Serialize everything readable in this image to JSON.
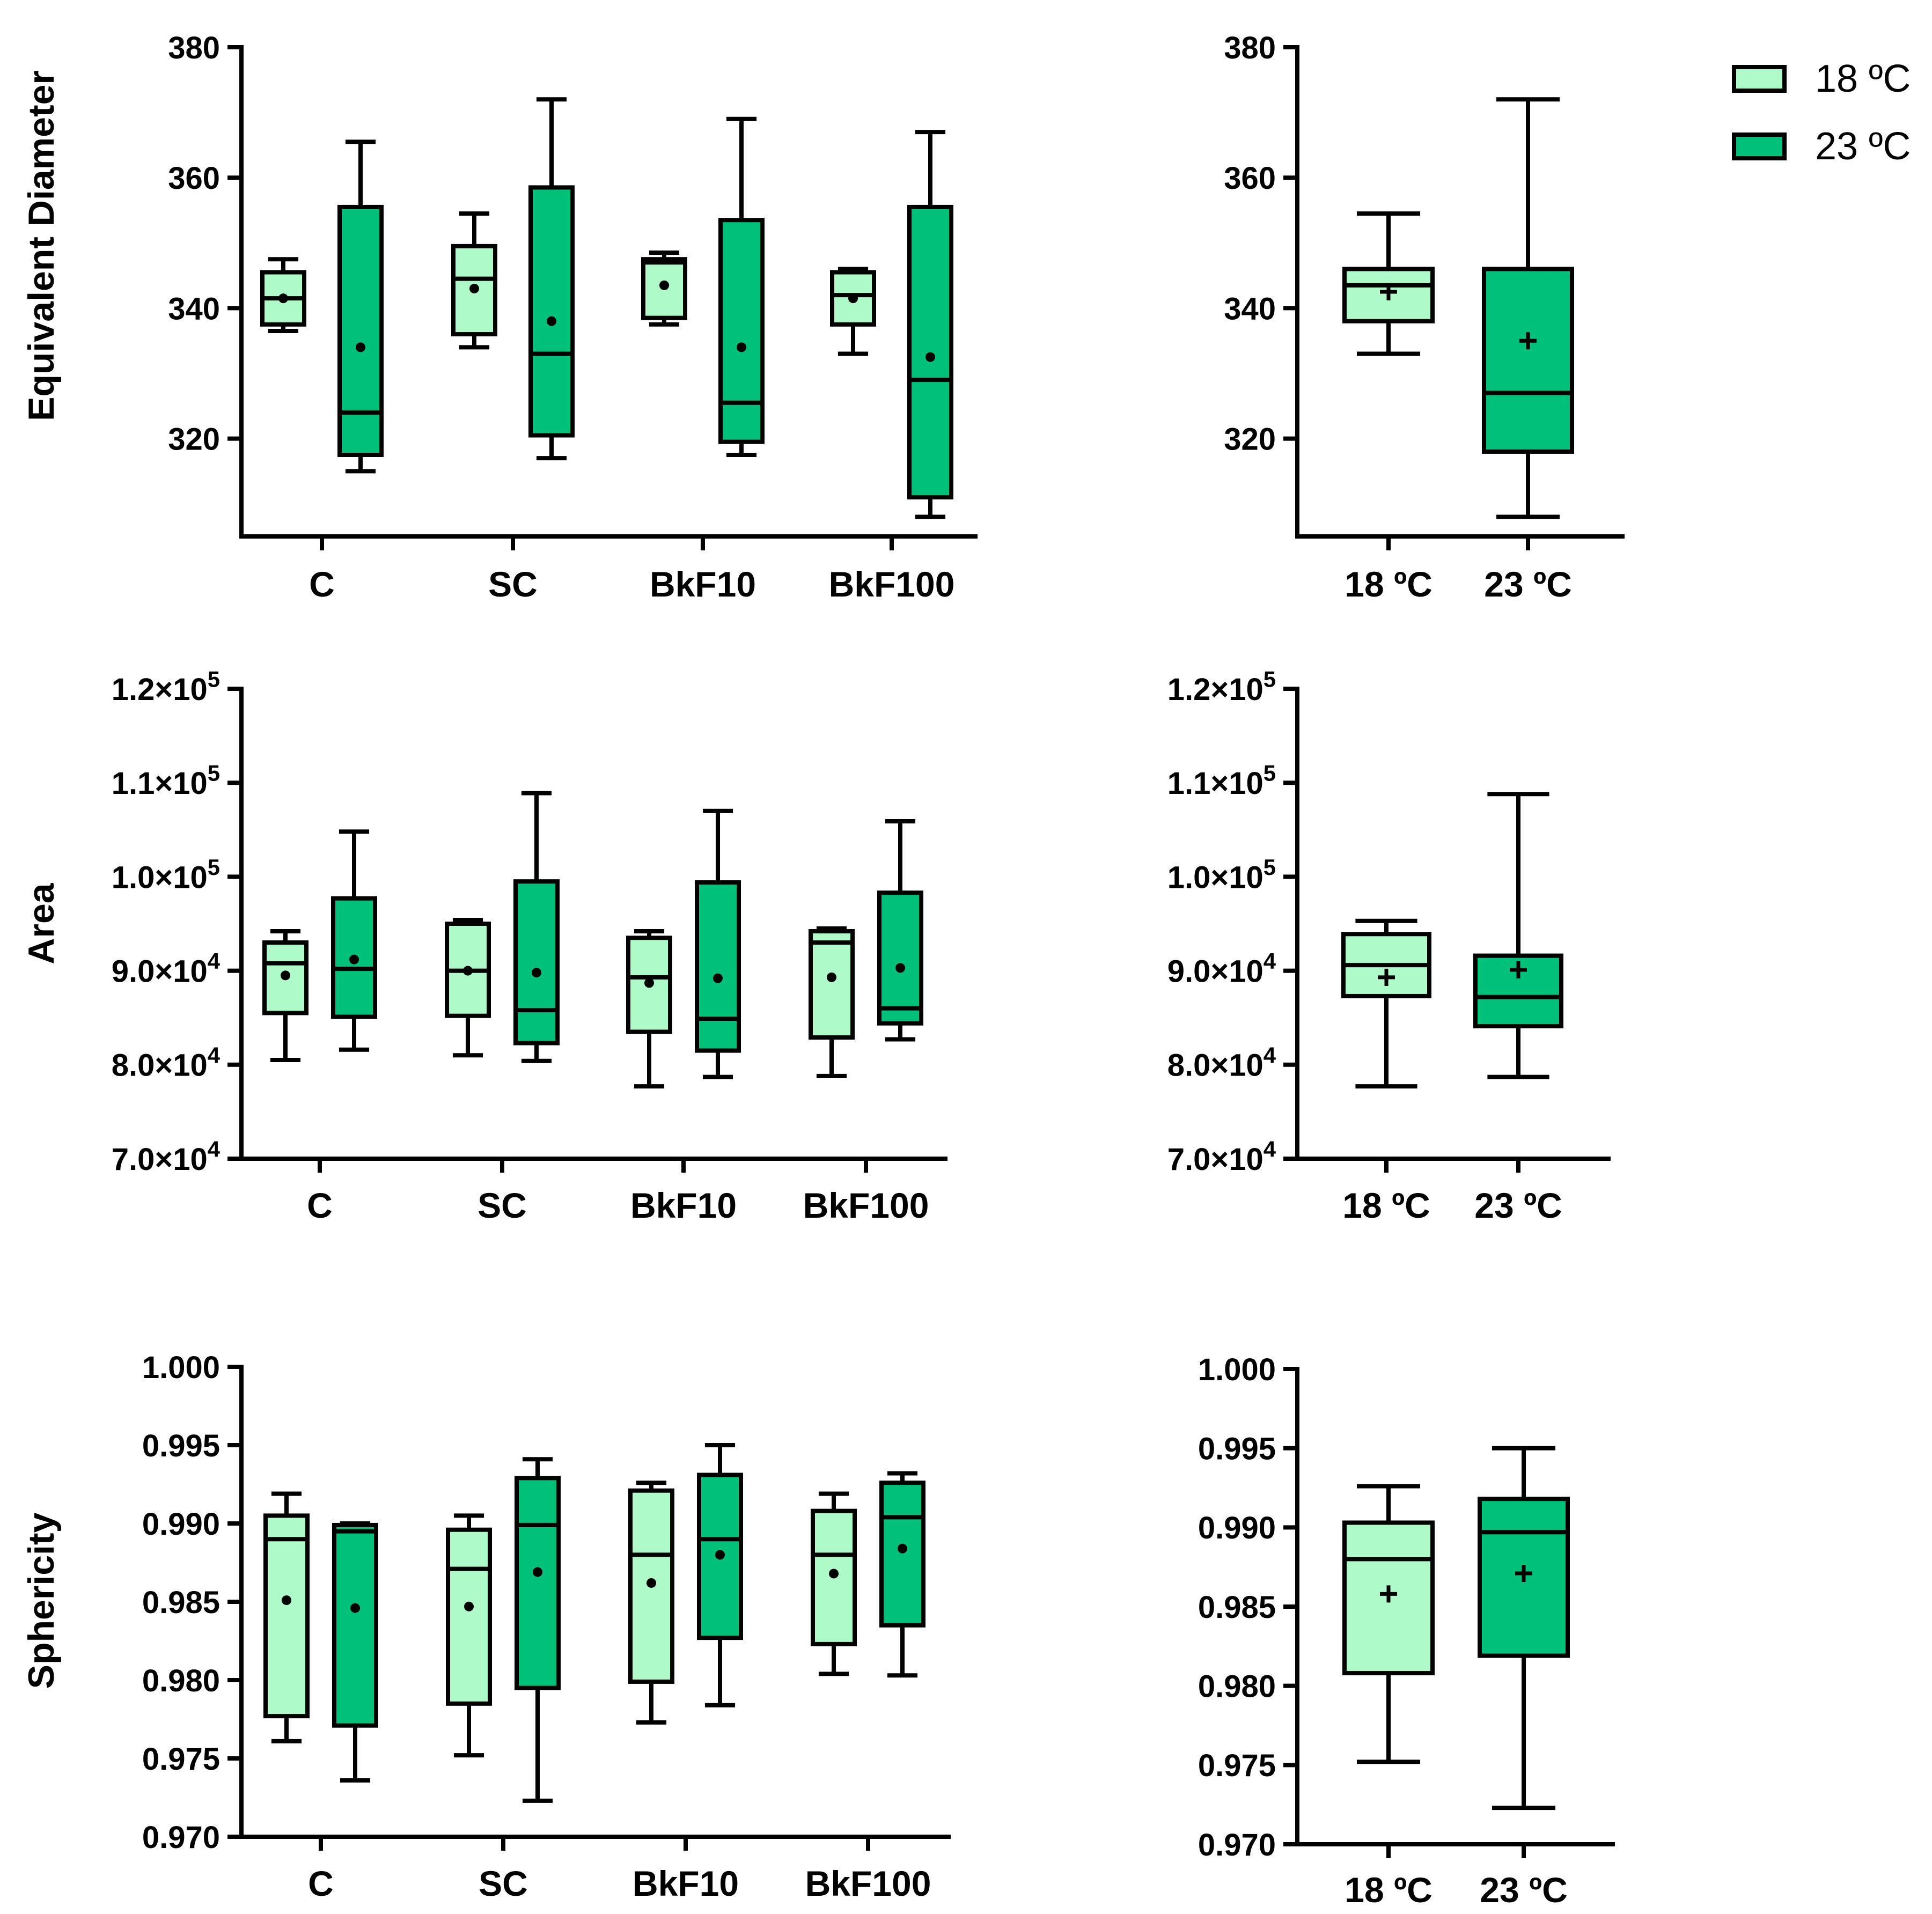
{
  "colors": {
    "light": "#aefac8",
    "dark": "#00c07a",
    "stroke": "#000000"
  },
  "legend": {
    "items": [
      {
        "label": "18 ºC",
        "color": "#aefac8"
      },
      {
        "label": "23 ºC",
        "color": "#00c07a"
      }
    ]
  },
  "chart_data": [
    {
      "id": "diam-groups",
      "type": "box",
      "ylabel": "Equivalent Diameter",
      "ylim": [
        305,
        380
      ],
      "yticks": [
        {
          "v": 320,
          "label": "320"
        },
        {
          "v": 340,
          "label": "340"
        },
        {
          "v": 360,
          "label": "360"
        },
        {
          "v": 380,
          "label": "380"
        }
      ],
      "categories": [
        "C",
        "SC",
        "BkF10",
        "BkF100"
      ],
      "series": [
        {
          "name": "18 ºC",
          "color": "#aefac8",
          "boxes": [
            {
              "min": 336.5,
              "q1": 337.5,
              "median": 341.5,
              "q3": 345.5,
              "max": 347.5,
              "mean": 341.5
            },
            {
              "min": 334,
              "q1": 336,
              "median": 344.5,
              "q3": 349.5,
              "max": 354.5,
              "mean": 343
            },
            {
              "min": 337.5,
              "q1": 338.5,
              "median": 347,
              "q3": 347.5,
              "max": 348.5,
              "mean": 343.5
            },
            {
              "min": 333,
              "q1": 337.5,
              "median": 342,
              "q3": 345.5,
              "max": 346,
              "mean": 341.5
            }
          ]
        },
        {
          "name": "23 ºC",
          "color": "#00c07a",
          "boxes": [
            {
              "min": 315,
              "q1": 317.5,
              "median": 324,
              "q3": 355.5,
              "max": 365.5,
              "mean": 334
            },
            {
              "min": 317,
              "q1": 320.5,
              "median": 333,
              "q3": 358.5,
              "max": 372,
              "mean": 338
            },
            {
              "min": 317.5,
              "q1": 319.5,
              "median": 325.5,
              "q3": 353.5,
              "max": 369,
              "mean": 334
            },
            {
              "min": 308,
              "q1": 311,
              "median": 329,
              "q3": 355.5,
              "max": 367,
              "mean": 332.5
            }
          ]
        }
      ]
    },
    {
      "id": "diam-temp",
      "type": "box",
      "ylim": [
        305,
        380
      ],
      "yticks": [
        {
          "v": 320,
          "label": "320"
        },
        {
          "v": 340,
          "label": "340"
        },
        {
          "v": 360,
          "label": "360"
        },
        {
          "v": 380,
          "label": "380"
        }
      ],
      "categories": [
        "18 ºC",
        "23 ºC"
      ],
      "boxes": [
        {
          "min": 333,
          "q1": 338,
          "median": 343.5,
          "q3": 346,
          "max": 354.5,
          "mean": 342.5,
          "color": "#aefac8"
        },
        {
          "min": 308,
          "q1": 318,
          "median": 327,
          "q3": 346,
          "max": 372,
          "mean": 335,
          "color": "#00c07a"
        }
      ]
    },
    {
      "id": "area-groups",
      "type": "box",
      "ylabel": "Area",
      "ylim": [
        70000,
        120000
      ],
      "yticks": [
        {
          "v": 70000,
          "label": "7.0×10",
          "exp": "4"
        },
        {
          "v": 80000,
          "label": "8.0×10",
          "exp": "4"
        },
        {
          "v": 90000,
          "label": "9.0×10",
          "exp": "4"
        },
        {
          "v": 100000,
          "label": "1.0×10",
          "exp": "5"
        },
        {
          "v": 110000,
          "label": "1.1×10",
          "exp": "5"
        },
        {
          "v": 120000,
          "label": "1.2×10",
          "exp": "5"
        }
      ],
      "categories": [
        "C",
        "SC",
        "BkF10",
        "BkF100"
      ],
      "series": [
        {
          "name": "18 ºC",
          "color": "#aefac8",
          "boxes": [
            {
              "min": 80500,
              "q1": 85500,
              "median": 90800,
              "q3": 93000,
              "max": 94200,
              "mean": 89500
            },
            {
              "min": 81000,
              "q1": 85200,
              "median": 90000,
              "q3": 95000,
              "max": 95400,
              "mean": 90000
            },
            {
              "min": 77700,
              "q1": 83500,
              "median": 89300,
              "q3": 93500,
              "max": 94200,
              "mean": 88700
            },
            {
              "min": 78800,
              "q1": 82900,
              "median": 93000,
              "q3": 94200,
              "max": 94500,
              "mean": 89300
            }
          ]
        },
        {
          "name": "23 ºC",
          "color": "#00c07a",
          "boxes": [
            {
              "min": 81600,
              "q1": 85100,
              "median": 90200,
              "q3": 97700,
              "max": 104800,
              "mean": 91200
            },
            {
              "min": 80400,
              "q1": 82300,
              "median": 85800,
              "q3": 99500,
              "max": 108900,
              "mean": 89800
            },
            {
              "min": 78700,
              "q1": 81500,
              "median": 84900,
              "q3": 99400,
              "max": 107000,
              "mean": 89200
            },
            {
              "min": 82700,
              "q1": 84400,
              "median": 86000,
              "q3": 98300,
              "max": 105900,
              "mean": 90300
            }
          ]
        }
      ]
    },
    {
      "id": "area-temp",
      "type": "box",
      "ylim": [
        70000,
        120000
      ],
      "yticks": [
        {
          "v": 70000,
          "label": "7.0×10",
          "exp": "4"
        },
        {
          "v": 80000,
          "label": "8.0×10",
          "exp": "4"
        },
        {
          "v": 90000,
          "label": "9.0×10",
          "exp": "4"
        },
        {
          "v": 100000,
          "label": "1.0×10",
          "exp": "5"
        },
        {
          "v": 110000,
          "label": "1.1×10",
          "exp": "5"
        },
        {
          "v": 120000,
          "label": "1.2×10",
          "exp": "5"
        }
      ],
      "categories": [
        "18 ºC",
        "23 ºC"
      ],
      "boxes": [
        {
          "min": 77700,
          "q1": 87300,
          "median": 90600,
          "q3": 93900,
          "max": 95300,
          "mean": 89300,
          "color": "#aefac8"
        },
        {
          "min": 78700,
          "q1": 84100,
          "median": 87200,
          "q3": 91600,
          "max": 108800,
          "mean": 90100,
          "color": "#00c07a"
        }
      ]
    },
    {
      "id": "spher-groups",
      "type": "box",
      "ylabel": "Sphericity",
      "ylim": [
        0.97,
        1.0
      ],
      "yticks": [
        {
          "v": 0.97,
          "label": "0.970"
        },
        {
          "v": 0.975,
          "label": "0.975"
        },
        {
          "v": 0.98,
          "label": "0.980"
        },
        {
          "v": 0.985,
          "label": "0.985"
        },
        {
          "v": 0.99,
          "label": "0.990"
        },
        {
          "v": 0.995,
          "label": "0.995"
        },
        {
          "v": 1.0,
          "label": "1.000"
        }
      ],
      "categories": [
        "C",
        "SC",
        "BkF10",
        "BkF100"
      ],
      "series": [
        {
          "name": "18 ºC",
          "color": "#aefac8",
          "boxes": [
            {
              "min": 0.9761,
              "q1": 0.9777,
              "median": 0.989,
              "q3": 0.9905,
              "max": 0.9919,
              "mean": 0.9851
            },
            {
              "min": 0.9752,
              "q1": 0.9785,
              "median": 0.9871,
              "q3": 0.9896,
              "max": 0.9905,
              "mean": 0.9847
            },
            {
              "min": 0.9773,
              "q1": 0.9799,
              "median": 0.988,
              "q3": 0.9921,
              "max": 0.9926,
              "mean": 0.9862
            },
            {
              "min": 0.9804,
              "q1": 0.9823,
              "median": 0.988,
              "q3": 0.9908,
              "max": 0.9919,
              "mean": 0.9868
            }
          ]
        },
        {
          "name": "23 ºC",
          "color": "#00c07a",
          "boxes": [
            {
              "min": 0.9736,
              "q1": 0.9771,
              "median": 0.9895,
              "q3": 0.9899,
              "max": 0.99,
              "mean": 0.9846
            },
            {
              "min": 0.9723,
              "q1": 0.9795,
              "median": 0.9899,
              "q3": 0.9929,
              "max": 0.9941,
              "mean": 0.9869
            },
            {
              "min": 0.9784,
              "q1": 0.9827,
              "median": 0.989,
              "q3": 0.9931,
              "max": 0.995,
              "mean": 0.988
            },
            {
              "min": 0.9803,
              "q1": 0.9835,
              "median": 0.9904,
              "q3": 0.9926,
              "max": 0.9932,
              "mean": 0.9884
            }
          ]
        }
      ]
    },
    {
      "id": "spher-temp",
      "type": "box",
      "ylim": [
        0.97,
        1.0
      ],
      "yticks": [
        {
          "v": 0.97,
          "label": "0.970"
        },
        {
          "v": 0.975,
          "label": "0.975"
        },
        {
          "v": 0.98,
          "label": "0.980"
        },
        {
          "v": 0.985,
          "label": "0.985"
        },
        {
          "v": 0.99,
          "label": "0.990"
        },
        {
          "v": 0.995,
          "label": "0.995"
        },
        {
          "v": 1.0,
          "label": "1.000"
        }
      ],
      "categories": [
        "18 ºC",
        "23 ºC"
      ],
      "boxes": [
        {
          "min": 0.9752,
          "q1": 0.9808,
          "median": 0.988,
          "q3": 0.9903,
          "max": 0.9926,
          "mean": 0.9858,
          "color": "#aefac8"
        },
        {
          "min": 0.9723,
          "q1": 0.9819,
          "median": 0.9897,
          "q3": 0.9918,
          "max": 0.995,
          "mean": 0.9871,
          "color": "#00c07a"
        }
      ]
    }
  ]
}
